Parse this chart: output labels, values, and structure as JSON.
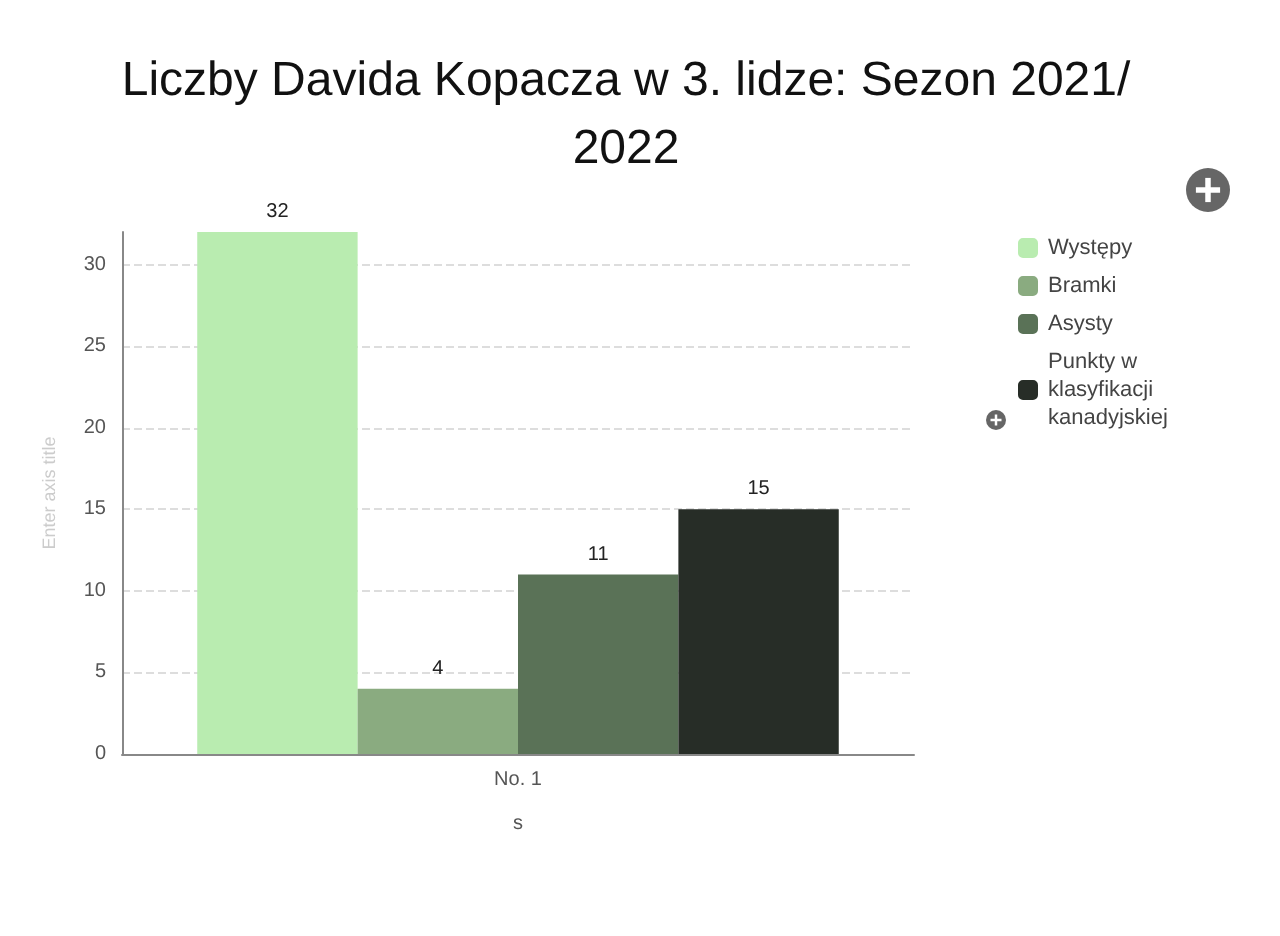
{
  "chart_data": {
    "type": "bar",
    "title": "Liczby Davida Kopacza w 3. lidze: Sezon 2021/2022",
    "xlabel": "s",
    "ylabel": "Enter axis title",
    "categories": [
      "No. 1"
    ],
    "series": [
      {
        "name": "Występy",
        "color": "#b9ecb0",
        "values": [
          32
        ]
      },
      {
        "name": "Bramki",
        "color": "#8aab80",
        "values": [
          4
        ]
      },
      {
        "name": "Asysty",
        "color": "#5a7257",
        "values": [
          11
        ]
      },
      {
        "name": "Punkty w klasyfikacji kanadyjskiej",
        "color": "#272d27",
        "values": [
          15
        ]
      }
    ],
    "ylim": [
      0,
      32
    ],
    "yticks": [
      0,
      5,
      10,
      15,
      20,
      25,
      30
    ],
    "grid": "y",
    "legend": "right",
    "data_labels": true
  }
}
